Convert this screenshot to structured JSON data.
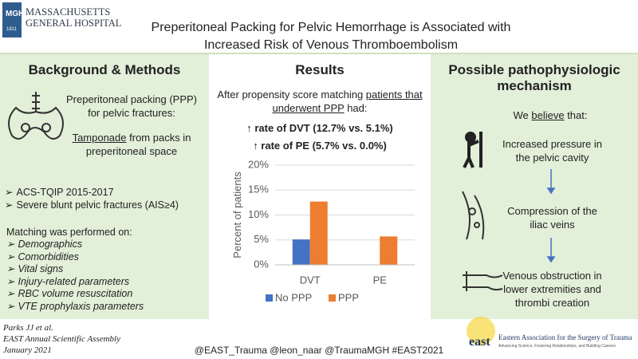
{
  "header": {
    "logo_text": "MGH",
    "logo_year": "1811",
    "institution": [
      "MASSACHUSETTS",
      "GENERAL HOSPITAL"
    ],
    "title": [
      "Preperitoneal Packing for Pelvic Hemorrhage is Associated with",
      "Increased Risk of Venous Thromboembolism"
    ]
  },
  "background": {
    "heading": "Background & Methods",
    "intro": "Preperitoneal packing (PPP) for pelvic fractures:",
    "mechanism": [
      "Tamponade",
      " from packs in preperitoneal space"
    ],
    "bullets": [
      "ACS-TQIP 2015-2017",
      "Severe blunt pelvic fractures (AIS≥4)"
    ],
    "matching_heading": "Matching was performed on:",
    "matching": [
      "Demographics",
      "Comorbidities",
      "Vital signs",
      "Injury-related parameters",
      "RBC volume resuscitation",
      "VTE prophylaxis parameters"
    ]
  },
  "results": {
    "heading": "Results",
    "intro": [
      "After propensity score matching ",
      "patients that underwent PPP",
      " had:"
    ],
    "findings": [
      "↑ rate of DVT (12.7% vs. 5.1%)",
      "↑ rate of PE (5.7% vs. 0.0%)"
    ]
  },
  "mechanism": {
    "heading": "Possible pathophysiologic mechanism",
    "intro": [
      "We ",
      "believe",
      " that:"
    ],
    "steps": [
      "Increased pressure in the pelvic cavity",
      "Compression of the iliac veins",
      "Venous obstruction in lower extremities and thrombi creation"
    ]
  },
  "footer": {
    "citation": [
      "Parks JJ et al.",
      "EAST Annual Scientific Assembly",
      "January 2021"
    ],
    "handles": "@EAST_Trauma @leon_naar @TraumaMGH #EAST2021",
    "east_logo": "east",
    "east_name": "Eastern Association for the Surgery of Trauma",
    "east_tagline": "Advancing Science, Fostering Relationships, and Building Careers"
  },
  "chart_data": {
    "type": "bar",
    "y_label": "Percent of patients",
    "categories": [
      "DVT",
      "PE"
    ],
    "series": [
      {
        "name": "No PPP",
        "color": "#4472c4",
        "values": [
          5.1,
          0.0
        ]
      },
      {
        "name": "PPP",
        "color": "#ed7d31",
        "values": [
          12.7,
          5.7
        ]
      }
    ],
    "ylim": [
      0,
      20
    ],
    "yticks": [
      {
        "value": 0,
        "label": "0%"
      },
      {
        "value": 5,
        "label": "5%"
      },
      {
        "value": 10,
        "label": "10%"
      },
      {
        "value": 15,
        "label": "15%"
      },
      {
        "value": 20,
        "label": "20%"
      }
    ],
    "grid": true,
    "legend": "bottom"
  }
}
